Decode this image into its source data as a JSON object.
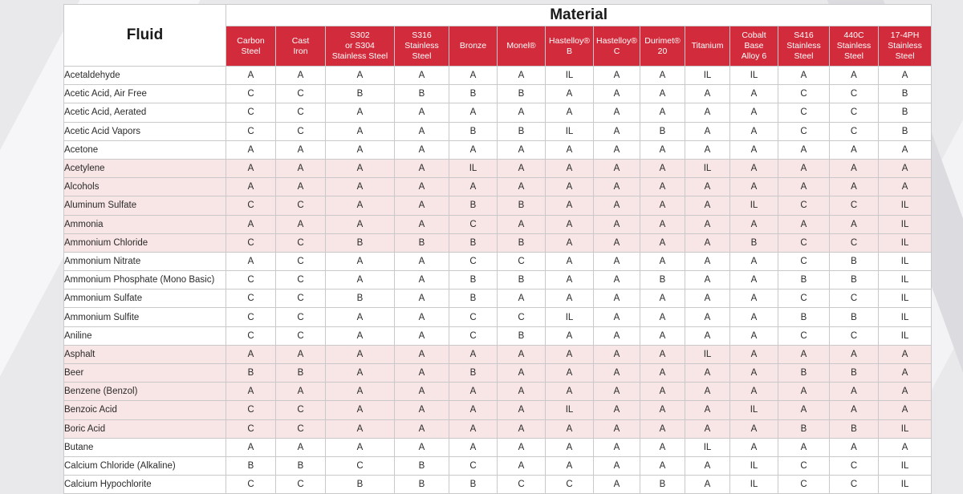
{
  "table": {
    "fluid_header": "Fluid",
    "material_header": "Material",
    "materials": [
      "Carbon\nSteel",
      "Cast\nIron",
      "S302\nor S304\nStainless Steel",
      "S316\nStainless\nSteel",
      "Bronze",
      "Monel®",
      "Hastelloy®\nB",
      "Hastelloy®\nC",
      "Durimet®\n20",
      "Titanium",
      "Cobalt\nBase\nAlloy 6",
      "S416\nStainless\nSteel",
      "440C\nStainless\nSteel",
      "17-4PH\nStainless\nSteel"
    ],
    "rows": [
      {
        "fluid": "Acetaldehyde",
        "shade": "white",
        "ratings": [
          "A",
          "A",
          "A",
          "A",
          "A",
          "A",
          "IL",
          "A",
          "A",
          "IL",
          "IL",
          "A",
          "A",
          "A"
        ]
      },
      {
        "fluid": "Acetic Acid, Air Free",
        "shade": "white",
        "ratings": [
          "C",
          "C",
          "B",
          "B",
          "B",
          "B",
          "A",
          "A",
          "A",
          "A",
          "A",
          "C",
          "C",
          "B"
        ]
      },
      {
        "fluid": "Acetic Acid, Aerated",
        "shade": "white",
        "ratings": [
          "C",
          "C",
          "A",
          "A",
          "A",
          "A",
          "A",
          "A",
          "A",
          "A",
          "A",
          "C",
          "C",
          "B"
        ]
      },
      {
        "fluid": "Acetic Acid Vapors",
        "shade": "white",
        "ratings": [
          "C",
          "C",
          "A",
          "A",
          "B",
          "B",
          "IL",
          "A",
          "B",
          "A",
          "A",
          "C",
          "C",
          "B"
        ]
      },
      {
        "fluid": "Acetone",
        "shade": "white",
        "ratings": [
          "A",
          "A",
          "A",
          "A",
          "A",
          "A",
          "A",
          "A",
          "A",
          "A",
          "A",
          "A",
          "A",
          "A"
        ]
      },
      {
        "fluid": "Acetylene",
        "shade": "pink",
        "ratings": [
          "A",
          "A",
          "A",
          "A",
          "IL",
          "A",
          "A",
          "A",
          "A",
          "IL",
          "A",
          "A",
          "A",
          "A"
        ]
      },
      {
        "fluid": "Alcohols",
        "shade": "pink",
        "ratings": [
          "A",
          "A",
          "A",
          "A",
          "A",
          "A",
          "A",
          "A",
          "A",
          "A",
          "A",
          "A",
          "A",
          "A"
        ]
      },
      {
        "fluid": "Aluminum Sulfate",
        "shade": "pink",
        "ratings": [
          "C",
          "C",
          "A",
          "A",
          "B",
          "B",
          "A",
          "A",
          "A",
          "A",
          "IL",
          "C",
          "C",
          "IL"
        ]
      },
      {
        "fluid": "Ammonia",
        "shade": "pink",
        "ratings": [
          "A",
          "A",
          "A",
          "A",
          "C",
          "A",
          "A",
          "A",
          "A",
          "A",
          "A",
          "A",
          "A",
          "IL"
        ]
      },
      {
        "fluid": "Ammonium Chloride",
        "shade": "pink",
        "ratings": [
          "C",
          "C",
          "B",
          "B",
          "B",
          "B",
          "A",
          "A",
          "A",
          "A",
          "B",
          "C",
          "C",
          "IL"
        ]
      },
      {
        "fluid": "Ammonium Nitrate",
        "shade": "white",
        "ratings": [
          "A",
          "C",
          "A",
          "A",
          "C",
          "C",
          "A",
          "A",
          "A",
          "A",
          "A",
          "C",
          "B",
          "IL"
        ]
      },
      {
        "fluid": "Ammonium Phosphate (Mono Basic)",
        "shade": "white",
        "ratings": [
          "C",
          "C",
          "A",
          "A",
          "B",
          "B",
          "A",
          "A",
          "B",
          "A",
          "A",
          "B",
          "B",
          "IL"
        ]
      },
      {
        "fluid": "Ammonium Sulfate",
        "shade": "white",
        "ratings": [
          "C",
          "C",
          "B",
          "A",
          "B",
          "A",
          "A",
          "A",
          "A",
          "A",
          "A",
          "C",
          "C",
          "IL"
        ]
      },
      {
        "fluid": "Ammonium Sulfite",
        "shade": "white",
        "ratings": [
          "C",
          "C",
          "A",
          "A",
          "C",
          "C",
          "IL",
          "A",
          "A",
          "A",
          "A",
          "B",
          "B",
          "IL"
        ]
      },
      {
        "fluid": "Aniline",
        "shade": "white",
        "ratings": [
          "C",
          "C",
          "A",
          "A",
          "C",
          "B",
          "A",
          "A",
          "A",
          "A",
          "A",
          "C",
          "C",
          "IL"
        ]
      },
      {
        "fluid": "Asphalt",
        "shade": "pink",
        "ratings": [
          "A",
          "A",
          "A",
          "A",
          "A",
          "A",
          "A",
          "A",
          "A",
          "IL",
          "A",
          "A",
          "A",
          "A"
        ]
      },
      {
        "fluid": "Beer",
        "shade": "pink",
        "ratings": [
          "B",
          "B",
          "A",
          "A",
          "B",
          "A",
          "A",
          "A",
          "A",
          "A",
          "A",
          "B",
          "B",
          "A"
        ]
      },
      {
        "fluid": "Benzene (Benzol)",
        "shade": "pink",
        "ratings": [
          "A",
          "A",
          "A",
          "A",
          "A",
          "A",
          "A",
          "A",
          "A",
          "A",
          "A",
          "A",
          "A",
          "A"
        ]
      },
      {
        "fluid": "Benzoic Acid",
        "shade": "pink",
        "ratings": [
          "C",
          "C",
          "A",
          "A",
          "A",
          "A",
          "IL",
          "A",
          "A",
          "A",
          "IL",
          "A",
          "A",
          "A"
        ]
      },
      {
        "fluid": "Boric Acid",
        "shade": "pink",
        "ratings": [
          "C",
          "C",
          "A",
          "A",
          "A",
          "A",
          "A",
          "A",
          "A",
          "A",
          "A",
          "B",
          "B",
          "IL"
        ]
      },
      {
        "fluid": "Butane",
        "shade": "white",
        "ratings": [
          "A",
          "A",
          "A",
          "A",
          "A",
          "A",
          "A",
          "A",
          "A",
          "IL",
          "A",
          "A",
          "A",
          "A"
        ]
      },
      {
        "fluid": "Calcium Chloride (Alkaline)",
        "shade": "white",
        "ratings": [
          "B",
          "B",
          "C",
          "B",
          "C",
          "A",
          "A",
          "A",
          "A",
          "A",
          "IL",
          "C",
          "C",
          "IL"
        ]
      },
      {
        "fluid": "Calcium Hypochlorite",
        "shade": "white",
        "ratings": [
          "C",
          "C",
          "B",
          "B",
          "B",
          "C",
          "C",
          "A",
          "B",
          "A",
          "IL",
          "C",
          "C",
          "IL"
        ]
      }
    ]
  }
}
